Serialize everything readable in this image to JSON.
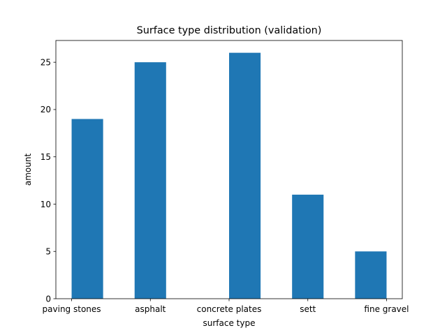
{
  "chart_data": {
    "type": "bar",
    "title": "Surface type distribution (validation)",
    "xlabel": "surface type",
    "ylabel": "amount",
    "categories": [
      "paving stones",
      "asphalt",
      "concrete plates",
      "sett",
      "fine gravel"
    ],
    "bars": [
      {
        "x": 0.25,
        "value": 19
      },
      {
        "x": 1.25,
        "value": 25
      },
      {
        "x": 2.75,
        "value": 26
      },
      {
        "x": 3.75,
        "value": 11
      },
      {
        "x": 4.75,
        "value": 5
      }
    ],
    "xticks": [
      {
        "x": 0,
        "label": "paving stones"
      },
      {
        "x": 1.25,
        "label": "asphalt"
      },
      {
        "x": 2.5,
        "label": "concrete plates"
      },
      {
        "x": 3.75,
        "label": "sett"
      },
      {
        "x": 5,
        "label": "fine gravel"
      }
    ],
    "bar_width": 0.5,
    "xlim": [
      -0.25,
      5.25
    ],
    "ylim": [
      0,
      27.3
    ],
    "yticks": [
      0,
      5,
      10,
      15,
      20,
      25
    ],
    "bar_color": "#1f77b4",
    "grid": false
  }
}
